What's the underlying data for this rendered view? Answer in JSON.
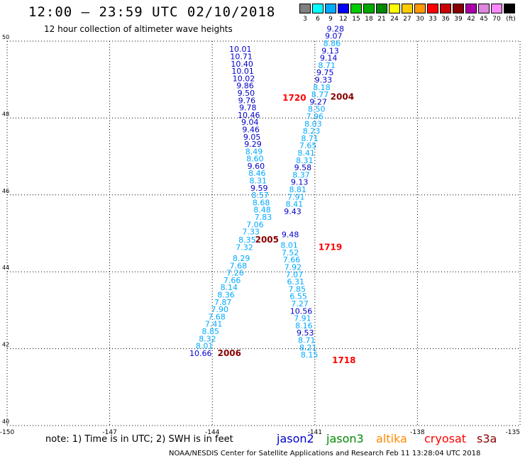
{
  "header": {
    "title": "12:00 — 23:59 UTC 02/10/2018",
    "subtitle": "12 hour collection of altimeter wave heights"
  },
  "legend": {
    "unit": "(ft)",
    "bins": [
      {
        "label": "3",
        "color": "#808080"
      },
      {
        "label": "6",
        "color": "#00ffff"
      },
      {
        "label": "9",
        "color": "#00aaff"
      },
      {
        "label": "12",
        "color": "#0000ff"
      },
      {
        "label": "15",
        "color": "#00cc00"
      },
      {
        "label": "18",
        "color": "#00aa00"
      },
      {
        "label": "21",
        "color": "#008800"
      },
      {
        "label": "24",
        "color": "#ffff00"
      },
      {
        "label": "27",
        "color": "#ffcc00"
      },
      {
        "label": "30",
        "color": "#ff9900"
      },
      {
        "label": "33",
        "color": "#ff0000"
      },
      {
        "label": "36",
        "color": "#cc0000"
      },
      {
        "label": "39",
        "color": "#880000"
      },
      {
        "label": "42",
        "color": "#aa00aa"
      },
      {
        "label": "45",
        "color": "#dd88dd"
      },
      {
        "label": "70",
        "color": "#ff88ff"
      },
      {
        "label": "",
        "color": "#000000"
      }
    ]
  },
  "note": "note: 1) Time is in UTC; 2) SWH is in feet",
  "satellites": [
    {
      "name": "jason2",
      "color": "#0000cc"
    },
    {
      "name": "jason3",
      "color": "#008800"
    },
    {
      "name": "altika",
      "color": "#ff8800"
    },
    {
      "name": "cryosat",
      "color": "#ff0000"
    },
    {
      "name": "s3a",
      "color": "#880000"
    }
  ],
  "footer": "NOAA/NESDIS Center for Satellite Applications and Research   Feb 11 13:28:04 UTC 2018",
  "chart_data": {
    "type": "scatter",
    "xlim": [
      -150,
      -135
    ],
    "ylim": [
      40,
      50
    ],
    "grid": true,
    "x_ticks": [
      "-150",
      "-147",
      "-144",
      "-141",
      "-138",
      "-135"
    ],
    "y_ticks": [
      "40",
      "42",
      "44",
      "46",
      "48",
      "50"
    ],
    "colors": {
      "light": "#00aaff",
      "dark": "#0000cc",
      "time_jason2": "#ff0000",
      "time_s3a": "#880000"
    },
    "series": [
      {
        "name": "track A",
        "points": [
          {
            "x": -143.18,
            "y": 49.72,
            "v": "10.01",
            "c": "dark"
          },
          {
            "x": -143.15,
            "y": 49.53,
            "v": "10.71",
            "c": "dark"
          },
          {
            "x": -143.13,
            "y": 49.34,
            "v": "10.40",
            "c": "dark"
          },
          {
            "x": -143.11,
            "y": 49.15,
            "v": "10.01",
            "c": "dark"
          },
          {
            "x": -143.08,
            "y": 48.96,
            "v": "10.02",
            "c": "dark"
          },
          {
            "x": -143.04,
            "y": 48.77,
            "v": "9.86",
            "c": "dark"
          },
          {
            "x": -143.01,
            "y": 48.58,
            "v": "9.50",
            "c": "dark"
          },
          {
            "x": -142.99,
            "y": 48.39,
            "v": "9.76",
            "c": "dark"
          },
          {
            "x": -142.96,
            "y": 48.2,
            "v": "9.78",
            "c": "dark"
          },
          {
            "x": -142.93,
            "y": 48.01,
            "v": "10.46",
            "c": "dark"
          },
          {
            "x": -142.9,
            "y": 47.82,
            "v": "9.04",
            "c": "dark"
          },
          {
            "x": -142.87,
            "y": 47.63,
            "v": "9.46",
            "c": "dark"
          },
          {
            "x": -142.84,
            "y": 47.44,
            "v": "9.05",
            "c": "dark"
          },
          {
            "x": -142.81,
            "y": 47.25,
            "v": "9.29",
            "c": "dark"
          },
          {
            "x": -142.78,
            "y": 47.06,
            "v": "8.49",
            "c": "light"
          },
          {
            "x": -142.75,
            "y": 46.87,
            "v": "8.60",
            "c": "light"
          },
          {
            "x": -142.72,
            "y": 46.68,
            "v": "9.60",
            "c": "dark"
          },
          {
            "x": -142.69,
            "y": 46.49,
            "v": "8.46",
            "c": "light"
          },
          {
            "x": -142.66,
            "y": 46.3,
            "v": "8.31",
            "c": "light"
          },
          {
            "x": -142.63,
            "y": 46.11,
            "v": "9.59",
            "c": "dark"
          },
          {
            "x": -142.6,
            "y": 45.92,
            "v": "8.57",
            "c": "light"
          },
          {
            "x": -142.57,
            "y": 45.73,
            "v": "8.68",
            "c": "light"
          },
          {
            "x": -142.54,
            "y": 45.54,
            "v": "8.48",
            "c": "light"
          },
          {
            "x": -142.51,
            "y": 45.35,
            "v": "7.83",
            "c": "light"
          },
          {
            "x": -142.75,
            "y": 45.16,
            "v": "7.06",
            "c": "light"
          },
          {
            "x": -142.87,
            "y": 44.97,
            "v": "7.33",
            "c": "light"
          },
          {
            "x": -142.98,
            "y": 44.76,
            "v": "8.35",
            "c": "light"
          },
          {
            "x": -143.06,
            "y": 44.57,
            "v": "7.32",
            "c": "light"
          },
          {
            "x": -143.15,
            "y": 44.28,
            "v": "8.29",
            "c": "light"
          },
          {
            "x": -143.24,
            "y": 44.09,
            "v": "7.68",
            "c": "light"
          },
          {
            "x": -143.33,
            "y": 43.9,
            "v": "7.26",
            "c": "light"
          },
          {
            "x": -143.42,
            "y": 43.71,
            "v": "7.66",
            "c": "light"
          },
          {
            "x": -143.51,
            "y": 43.52,
            "v": "8.14",
            "c": "light"
          },
          {
            "x": -143.6,
            "y": 43.33,
            "v": "8.36",
            "c": "light"
          },
          {
            "x": -143.69,
            "y": 43.14,
            "v": "7.87",
            "c": "light"
          },
          {
            "x": -143.78,
            "y": 42.95,
            "v": "7.90",
            "c": "light"
          },
          {
            "x": -143.87,
            "y": 42.76,
            "v": "7.68",
            "c": "light"
          },
          {
            "x": -143.96,
            "y": 42.57,
            "v": "7.41",
            "c": "light"
          },
          {
            "x": -144.05,
            "y": 42.38,
            "v": "8.85",
            "c": "light"
          },
          {
            "x": -144.14,
            "y": 42.19,
            "v": "8.32",
            "c": "light"
          },
          {
            "x": -144.23,
            "y": 42.0,
            "v": "8.01",
            "c": "light"
          },
          {
            "x": -144.34,
            "y": 41.81,
            "v": "10.66",
            "c": "dark"
          }
        ]
      },
      {
        "name": "track B",
        "points": [
          {
            "x": -140.4,
            "y": 50.25,
            "v": "9.28",
            "c": "dark"
          },
          {
            "x": -140.45,
            "y": 50.06,
            "v": "9.07",
            "c": "dark"
          },
          {
            "x": -140.5,
            "y": 49.87,
            "v": "8.86",
            "c": "light"
          },
          {
            "x": -140.55,
            "y": 49.68,
            "v": "9.13",
            "c": "dark"
          },
          {
            "x": -140.6,
            "y": 49.49,
            "v": "9.14",
            "c": "dark"
          },
          {
            "x": -140.65,
            "y": 49.3,
            "v": "8.71",
            "c": "light"
          },
          {
            "x": -140.7,
            "y": 49.11,
            "v": "9.75",
            "c": "dark"
          },
          {
            "x": -140.75,
            "y": 48.92,
            "v": "9.33",
            "c": "dark"
          },
          {
            "x": -140.8,
            "y": 48.73,
            "v": "8.18",
            "c": "light"
          },
          {
            "x": -140.85,
            "y": 48.54,
            "v": "8.77",
            "c": "light"
          },
          {
            "x": -140.9,
            "y": 48.35,
            "v": "9.27",
            "c": "dark"
          },
          {
            "x": -140.95,
            "y": 48.16,
            "v": "8.50",
            "c": "light"
          },
          {
            "x": -141.0,
            "y": 47.97,
            "v": "7.96",
            "c": "light"
          },
          {
            "x": -141.05,
            "y": 47.78,
            "v": "8.03",
            "c": "light"
          },
          {
            "x": -141.1,
            "y": 47.59,
            "v": "8.23",
            "c": "light"
          },
          {
            "x": -141.15,
            "y": 47.4,
            "v": "8.71",
            "c": "light"
          },
          {
            "x": -141.2,
            "y": 47.21,
            "v": "7.65",
            "c": "light"
          },
          {
            "x": -141.25,
            "y": 47.02,
            "v": "8.41",
            "c": "light"
          },
          {
            "x": -141.3,
            "y": 46.83,
            "v": "8.31",
            "c": "light"
          },
          {
            "x": -141.35,
            "y": 46.64,
            "v": "9.58",
            "c": "dark"
          },
          {
            "x": -141.4,
            "y": 46.45,
            "v": "8.37",
            "c": "light"
          },
          {
            "x": -141.45,
            "y": 46.26,
            "v": "9.13",
            "c": "dark"
          },
          {
            "x": -141.5,
            "y": 46.07,
            "v": "8.81",
            "c": "light"
          },
          {
            "x": -141.55,
            "y": 45.88,
            "v": "7.91",
            "c": "light"
          },
          {
            "x": -141.6,
            "y": 45.69,
            "v": "8.41",
            "c": "light"
          },
          {
            "x": -141.65,
            "y": 45.5,
            "v": "9.43",
            "c": "dark"
          },
          {
            "x": -141.72,
            "y": 44.9,
            "v": "9.48",
            "c": "dark"
          },
          {
            "x": -141.75,
            "y": 44.62,
            "v": "8.01",
            "c": "light"
          },
          {
            "x": -141.72,
            "y": 44.43,
            "v": "7.52",
            "c": "light"
          },
          {
            "x": -141.68,
            "y": 44.24,
            "v": "7.66",
            "c": "light"
          },
          {
            "x": -141.64,
            "y": 44.05,
            "v": "7.92",
            "c": "light"
          },
          {
            "x": -141.6,
            "y": 43.86,
            "v": "7.07",
            "c": "light"
          },
          {
            "x": -141.56,
            "y": 43.67,
            "v": "6.31",
            "c": "light"
          },
          {
            "x": -141.52,
            "y": 43.48,
            "v": "7.85",
            "c": "light"
          },
          {
            "x": -141.48,
            "y": 43.29,
            "v": "6.55",
            "c": "light"
          },
          {
            "x": -141.44,
            "y": 43.1,
            "v": "7.27",
            "c": "light"
          },
          {
            "x": -141.4,
            "y": 42.91,
            "v": "10.56",
            "c": "dark"
          },
          {
            "x": -141.36,
            "y": 42.72,
            "v": "7.91",
            "c": "light"
          },
          {
            "x": -141.32,
            "y": 42.53,
            "v": "8.16",
            "c": "light"
          },
          {
            "x": -141.28,
            "y": 42.34,
            "v": "9.53",
            "c": "dark"
          },
          {
            "x": -141.24,
            "y": 42.15,
            "v": "8.71",
            "c": "light"
          },
          {
            "x": -141.2,
            "y": 41.96,
            "v": "8.21",
            "c": "light"
          },
          {
            "x": -141.16,
            "y": 41.77,
            "v": "8.15",
            "c": "light"
          }
        ]
      }
    ],
    "time_labels": [
      {
        "x": -141.6,
        "y": 48.45,
        "t": "1720",
        "c": "time_jason2"
      },
      {
        "x": -140.2,
        "y": 48.48,
        "t": "2004",
        "c": "time_s3a"
      },
      {
        "x": -142.4,
        "y": 44.76,
        "t": "2005",
        "c": "time_s3a"
      },
      {
        "x": -140.55,
        "y": 44.57,
        "t": "1719",
        "c": "time_jason2"
      },
      {
        "x": -143.5,
        "y": 41.81,
        "t": "2006",
        "c": "time_s3a"
      },
      {
        "x": -140.15,
        "y": 41.62,
        "t": "1718",
        "c": "time_jason2"
      }
    ]
  }
}
